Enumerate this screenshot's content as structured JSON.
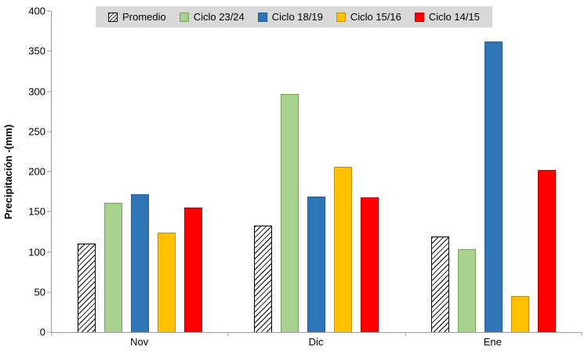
{
  "chart_data": {
    "type": "bar",
    "title": "",
    "xlabel": "",
    "ylabel": "Precipitación -(mm)",
    "ylim": [
      0,
      400
    ],
    "yticks": [
      0,
      50,
      100,
      150,
      200,
      250,
      300,
      350,
      400
    ],
    "grid": false,
    "legend_position": "top",
    "legend_bg_color": "#d9d9d9",
    "axis_color": "#9e9e9e",
    "categories": [
      "Nov",
      "Dic",
      "Ene"
    ],
    "series": [
      {
        "name": "Promedio",
        "style": "hatched",
        "color": "#ffffff",
        "border": "#000000",
        "values": [
          110,
          133,
          119
        ]
      },
      {
        "name": "Ciclo 23/24",
        "style": "solid",
        "color": "#a9d18e",
        "border": "#7ca35c",
        "values": [
          161,
          297,
          103
        ]
      },
      {
        "name": "Ciclo 18/19",
        "style": "solid",
        "color": "#2e75b6",
        "border": "#255d92",
        "values": [
          172,
          169,
          362
        ]
      },
      {
        "name": "Ciclo 15/16",
        "style": "solid",
        "color": "#ffc000",
        "border": "#bf9000",
        "values": [
          124,
          206,
          45
        ]
      },
      {
        "name": "Ciclo 14/15",
        "style": "solid",
        "color": "#ff0000",
        "border": "#c00000",
        "values": [
          155,
          168,
          202
        ]
      }
    ]
  }
}
